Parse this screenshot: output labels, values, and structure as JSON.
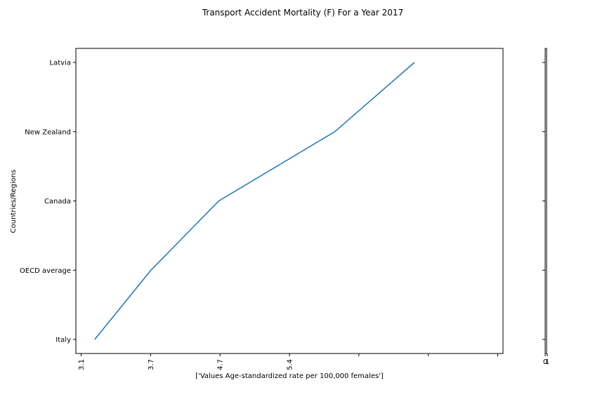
{
  "chart_data": {
    "type": "line",
    "title": "Transport Accident Mortality (F) For a Year 2017",
    "xlabel": "['Values Age-standardized rate per 100,000 females']",
    "ylabel": "Countries/Regions",
    "categories": [
      "Italy",
      "OECD average",
      "Canada",
      "New Zealand",
      "Latvia"
    ],
    "values": [
      3.25,
      3.87,
      4.62,
      5.9,
      6.78
    ],
    "x_tick_values": [
      3.1,
      3.7,
      4.7,
      5.4
    ],
    "x_tick_labels": [
      "3.1",
      "3.7",
      "4.7",
      "5.4"
    ],
    "side_axis_labels": [
      "0",
      "1"
    ],
    "line_color": "#1f77b4",
    "grid": false
  }
}
